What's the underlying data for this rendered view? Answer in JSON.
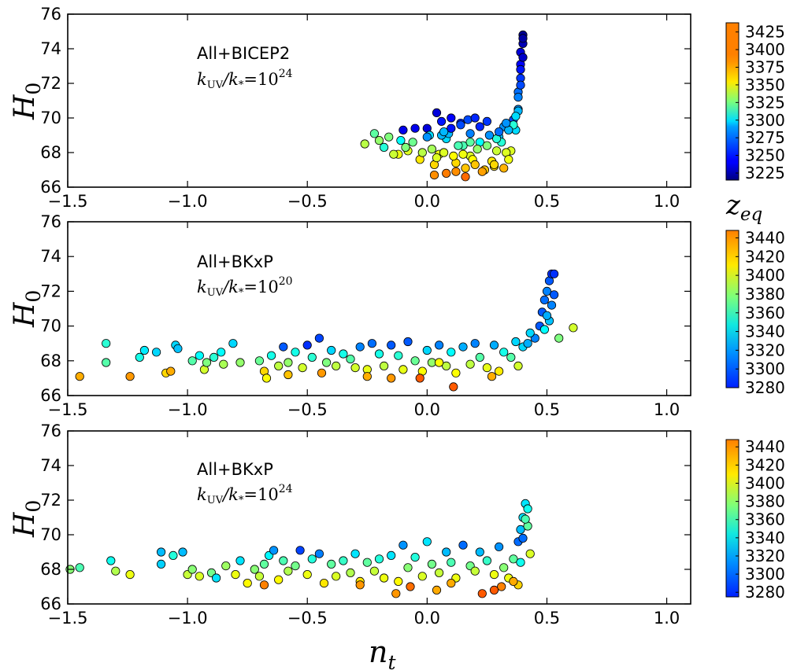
{
  "chart_data": [
    {
      "type": "scatter",
      "ylabel": "H_0",
      "ylabel_main": "H",
      "ylabel_sub": "0",
      "xlim": [
        -1.5,
        1.1
      ],
      "ylim": [
        66,
        76
      ],
      "xticks": [
        -1.5,
        -1.0,
        -0.5,
        0.0,
        0.5,
        1.0
      ],
      "xtick_labels": [
        "−1.5",
        "−1.0",
        "−0.5",
        "0.0",
        "0.5",
        "1.0"
      ],
      "yticks": [
        66,
        68,
        70,
        72,
        74,
        76
      ],
      "ytick_labels": [
        "66",
        "68",
        "70",
        "72",
        "74",
        "76"
      ],
      "annotation": {
        "dataset": "All+BICEP2",
        "ratio_prefix": "k",
        "ratio_sub1": "UV",
        "ratio_mid": "/k",
        "ratio_sub2": "*",
        "ratio_eq": "=10",
        "exponent": "24"
      },
      "colorbar": {
        "label": "z_eq",
        "label_main": "z",
        "label_sub": "eq",
        "range": [
          3215,
          3438
        ],
        "ticks": [
          3225,
          3250,
          3275,
          3300,
          3325,
          3350,
          3375,
          3400,
          3425
        ],
        "tick_labels": [
          "3225",
          "3250",
          "3275",
          "3300",
          "3325",
          "3350",
          "3375",
          "3400",
          "3425"
        ]
      },
      "series": [
        {
          "x": [
            -0.26,
            -0.22,
            -0.2,
            -0.18,
            -0.16,
            -0.12,
            -0.1,
            -0.08,
            -0.05,
            -0.03,
            0.0,
            0.02,
            0.04,
            0.05,
            0.06,
            0.08,
            0.1,
            0.12,
            0.14,
            0.15,
            0.17,
            0.18,
            0.2,
            0.22,
            0.25,
            0.28,
            0.3,
            0.32,
            0.35,
            0.37,
            -0.14,
            -0.06,
            0.03,
            0.09,
            0.16,
            0.21,
            0.27,
            0.33,
            -0.09,
            0.01,
            0.13,
            0.24,
            0.31,
            0.36,
            -0.11,
            0.07,
            0.19,
            0.29,
            0.34,
            0.38,
            0.38,
            0.39,
            0.39,
            0.39,
            0.4,
            0.4,
            0.4,
            0.39,
            0.38,
            0.38,
            0.4,
            0.39,
            0.37,
            0.36,
            0.34,
            0.3,
            0.26,
            0.22,
            0.18,
            0.14,
            0.1,
            0.06,
            0.04,
            0.0,
            -0.02,
            0.08,
            0.12,
            0.16,
            0.23,
            0.28,
            0.32,
            0.11,
            0.2,
            0.25,
            0.03,
            0.15,
            0.33,
            0.29,
            0.07,
            0.18
          ],
          "y": [
            68.5,
            69.1,
            68.7,
            68.3,
            68.9,
            67.9,
            69.3,
            68.1,
            69.4,
            67.6,
            69.4,
            68.2,
            70.3,
            67.9,
            69.8,
            68.8,
            70.0,
            67.4,
            69.7,
            68.4,
            69.9,
            67.8,
            70.0,
            68.6,
            69.8,
            67.2,
            68.9,
            69.5,
            68.1,
            69.3,
            67.9,
            68.6,
            67.3,
            69.1,
            67.1,
            68.2,
            67.5,
            68.0,
            68.3,
            69.0,
            68.4,
            67.0,
            68.6,
            69.9,
            68.7,
            68.0,
            67.6,
            68.8,
            67.6,
            70.5,
            71.5,
            72.3,
            73.1,
            73.8,
            74.3,
            74.8,
            74.6,
            72.8,
            71.2,
            70.4,
            73.5,
            71.9,
            70.1,
            69.6,
            69.3,
            69.2,
            69.0,
            69.5,
            69.1,
            69.6,
            69.4,
            69.0,
            67.7,
            68.9,
            68.0,
            66.8,
            66.9,
            66.6,
            66.9,
            67.3,
            67.1,
            67.8,
            67.3,
            68.4,
            66.7,
            67.9,
            69.7,
            68.1,
            69.2,
            68.6
          ],
          "z": [
            3370,
            3345,
            3360,
            3330,
            3355,
            3385,
            3245,
            3380,
            3245,
            3395,
            3240,
            3365,
            3240,
            3385,
            3255,
            3310,
            3250,
            3400,
            3260,
            3340,
            3270,
            3380,
            3260,
            3320,
            3265,
            3400,
            3300,
            3290,
            3380,
            3310,
            3375,
            3350,
            3400,
            3300,
            3405,
            3360,
            3395,
            3380,
            3355,
            3310,
            3340,
            3405,
            3330,
            3270,
            3320,
            3380,
            3390,
            3330,
            3385,
            3290,
            3280,
            3265,
            3250,
            3240,
            3230,
            3220,
            3225,
            3255,
            3285,
            3300,
            3235,
            3270,
            3310,
            3330,
            3300,
            3280,
            3290,
            3260,
            3285,
            3270,
            3255,
            3300,
            3380,
            3290,
            3370,
            3425,
            3420,
            3430,
            3415,
            3400,
            3410,
            3390,
            3405,
            3355,
            3420,
            3385,
            3290,
            3375,
            3300,
            3345
          ]
        }
      ]
    },
    {
      "type": "scatter",
      "ylabel": "H_0",
      "ylabel_main": "H",
      "ylabel_sub": "0",
      "xlim": [
        -1.5,
        1.1
      ],
      "ylim": [
        66,
        76
      ],
      "xticks": [
        -1.5,
        -1.0,
        -0.5,
        0.0,
        0.5,
        1.0
      ],
      "xtick_labels": [
        "−1.5",
        "−1.0",
        "−0.5",
        "0.0",
        "0.5",
        "1.0"
      ],
      "yticks": [
        66,
        68,
        70,
        72,
        74,
        76
      ],
      "ytick_labels": [
        "66",
        "68",
        "70",
        "72",
        "74",
        "76"
      ],
      "annotation": {
        "dataset": "All+BKxP",
        "ratio_prefix": "k",
        "ratio_sub1": "UV",
        "ratio_mid": "/k",
        "ratio_sub2": "*",
        "ratio_eq": "=10",
        "exponent": "20"
      },
      "colorbar": {
        "label": "",
        "range": [
          3280,
          3448
        ],
        "ticks": [
          3280,
          3300,
          3320,
          3340,
          3360,
          3380,
          3400,
          3420,
          3440
        ],
        "tick_labels": [
          "3280",
          "3300",
          "3320",
          "3340",
          "3360",
          "3380",
          "3400",
          "3420",
          "3440"
        ]
      },
      "series": [
        {
          "x": [
            -1.45,
            -1.34,
            -1.34,
            -1.24,
            -1.2,
            -1.18,
            -1.13,
            -1.09,
            -1.07,
            -1.05,
            -1.04,
            -0.98,
            -0.95,
            -0.93,
            -0.92,
            -0.89,
            -0.86,
            -0.85,
            -0.81,
            -0.78,
            -0.7,
            -0.68,
            -0.67,
            -0.65,
            -0.62,
            -0.6,
            -0.58,
            -0.55,
            -0.52,
            -0.5,
            -0.48,
            -0.45,
            -0.42,
            -0.4,
            -0.38,
            -0.35,
            -0.32,
            -0.3,
            -0.28,
            -0.25,
            -0.23,
            -0.2,
            -0.18,
            -0.15,
            -0.12,
            -0.1,
            -0.08,
            -0.05,
            -0.02,
            0.0,
            0.02,
            0.05,
            0.08,
            0.1,
            0.12,
            0.15,
            0.18,
            0.2,
            0.22,
            0.25,
            0.28,
            0.3,
            0.32,
            0.35,
            0.38,
            0.4,
            0.42,
            0.45,
            0.47,
            0.48,
            0.49,
            0.5,
            0.51,
            0.52,
            0.53,
            0.53,
            0.52,
            0.51,
            0.5,
            0.49,
            0.55,
            0.61,
            0.37,
            0.11,
            -0.03,
            -0.44,
            -0.58,
            -0.25,
            -0.15,
            0.05,
            0.27,
            0.43
          ],
          "y": [
            67.1,
            69.0,
            67.9,
            67.1,
            68.2,
            68.6,
            68.5,
            67.3,
            67.4,
            68.9,
            68.7,
            68.0,
            68.3,
            67.5,
            67.9,
            68.2,
            68.5,
            67.8,
            69.0,
            67.9,
            68.0,
            67.4,
            67.0,
            68.3,
            67.7,
            68.8,
            67.9,
            68.5,
            67.6,
            68.9,
            68.2,
            69.3,
            67.9,
            68.6,
            67.7,
            68.4,
            68.1,
            67.6,
            68.8,
            67.5,
            69.0,
            68.4,
            67.7,
            68.9,
            68.3,
            67.5,
            69.1,
            68.0,
            67.4,
            68.6,
            67.9,
            68.9,
            67.7,
            68.5,
            67.3,
            68.8,
            67.8,
            69.0,
            68.2,
            67.6,
            68.9,
            67.4,
            68.5,
            68.2,
            67.7,
            68.8,
            69.0,
            69.3,
            70.0,
            70.8,
            71.5,
            72.0,
            72.6,
            73.0,
            73.0,
            71.8,
            71.2,
            70.3,
            70.6,
            69.8,
            69.3,
            69.9,
            69.1,
            66.5,
            67.0,
            67.3,
            67.2,
            67.1,
            67.0,
            67.9,
            67.1,
            69.6
          ],
          "z": [
            3420,
            3350,
            3360,
            3425,
            3345,
            3335,
            3330,
            3410,
            3420,
            3330,
            3325,
            3360,
            3340,
            3390,
            3370,
            3350,
            3340,
            3380,
            3330,
            3375,
            3365,
            3410,
            3400,
            3345,
            3385,
            3300,
            3375,
            3345,
            3390,
            3290,
            3350,
            3295,
            3370,
            3330,
            3385,
            3345,
            3360,
            3390,
            3310,
            3395,
            3305,
            3345,
            3385,
            3300,
            3350,
            3395,
            3300,
            3365,
            3400,
            3330,
            3375,
            3310,
            3385,
            3340,
            3400,
            3320,
            3385,
            3310,
            3360,
            3395,
            3320,
            3405,
            3345,
            3360,
            3390,
            3330,
            3320,
            3310,
            3300,
            3300,
            3305,
            3310,
            3300,
            3290,
            3290,
            3300,
            3310,
            3325,
            3320,
            3340,
            3370,
            3390,
            3330,
            3440,
            3440,
            3425,
            3415,
            3420,
            3425,
            3400,
            3420,
            3330
          ]
        }
      ]
    },
    {
      "type": "scatter",
      "ylabel": "H_0",
      "ylabel_main": "H",
      "ylabel_sub": "0",
      "xlabel": "n_t",
      "xlabel_main": "n",
      "xlabel_sub": "t",
      "xlim": [
        -1.5,
        1.1
      ],
      "ylim": [
        66,
        76
      ],
      "xticks": [
        -1.5,
        -1.0,
        -0.5,
        0.0,
        0.5,
        1.0
      ],
      "xtick_labels": [
        "−1.5",
        "−1.0",
        "−0.5",
        "0.0",
        "0.5",
        "1.0"
      ],
      "yticks": [
        66,
        68,
        70,
        72,
        74,
        76
      ],
      "ytick_labels": [
        "66",
        "68",
        "70",
        "72",
        "74",
        "76"
      ],
      "annotation": {
        "dataset": "All+BKxP",
        "ratio_prefix": "k",
        "ratio_sub1": "UV",
        "ratio_mid": "/k",
        "ratio_sub2": "*",
        "ratio_eq": "=10",
        "exponent": "24"
      },
      "colorbar": {
        "label": "",
        "range": [
          3275,
          3448
        ],
        "ticks": [
          3280,
          3300,
          3320,
          3340,
          3360,
          3380,
          3400,
          3420,
          3440
        ],
        "tick_labels": [
          "3280",
          "3300",
          "3320",
          "3340",
          "3360",
          "3380",
          "3400",
          "3420",
          "3440"
        ]
      },
      "series": [
        {
          "x": [
            -1.49,
            -1.45,
            -1.32,
            -1.3,
            -1.24,
            -1.11,
            -1.11,
            -1.06,
            -1.02,
            -1.0,
            -0.98,
            -0.95,
            -0.9,
            -0.88,
            -0.84,
            -0.8,
            -0.78,
            -0.75,
            -0.72,
            -0.7,
            -0.68,
            -0.66,
            -0.64,
            -0.62,
            -0.6,
            -0.58,
            -0.55,
            -0.53,
            -0.5,
            -0.48,
            -0.45,
            -0.43,
            -0.4,
            -0.38,
            -0.35,
            -0.32,
            -0.3,
            -0.28,
            -0.25,
            -0.22,
            -0.2,
            -0.18,
            -0.15,
            -0.12,
            -0.1,
            -0.08,
            -0.05,
            -0.02,
            0.0,
            0.02,
            0.05,
            0.08,
            0.1,
            0.12,
            0.15,
            0.18,
            0.2,
            0.22,
            0.25,
            0.28,
            0.3,
            0.32,
            0.34,
            0.36,
            0.38,
            0.39,
            0.4,
            0.41,
            0.42,
            0.42,
            0.41,
            0.4,
            0.39,
            0.43,
            0.38,
            0.36,
            -0.13,
            -0.07,
            0.04,
            0.23,
            0.31,
            -0.28,
            0.1,
            0.28,
            -0.68
          ],
          "y": [
            68.0,
            68.1,
            68.5,
            67.9,
            67.7,
            69.0,
            68.3,
            68.8,
            69.0,
            67.7,
            68.0,
            67.6,
            67.8,
            67.5,
            68.2,
            67.7,
            68.5,
            67.2,
            68.0,
            67.6,
            68.3,
            68.8,
            69.1,
            67.4,
            68.5,
            67.9,
            68.2,
            69.1,
            67.7,
            68.6,
            68.9,
            67.2,
            68.3,
            67.6,
            68.5,
            67.8,
            68.9,
            67.3,
            68.4,
            67.9,
            68.6,
            67.5,
            68.8,
            67.3,
            69.4,
            68.1,
            68.7,
            67.6,
            69.6,
            68.3,
            67.8,
            69.0,
            68.4,
            67.5,
            69.4,
            68.2,
            67.9,
            69.0,
            68.5,
            67.7,
            69.3,
            68.1,
            67.5,
            68.6,
            69.6,
            70.3,
            71.0,
            71.8,
            71.5,
            70.5,
            70.9,
            69.8,
            68.4,
            68.9,
            67.1,
            67.3,
            66.6,
            67.0,
            66.8,
            66.6,
            67.0,
            67.1,
            67.2,
            66.8,
            67.1
          ],
          "z": [
            3370,
            3355,
            3340,
            3380,
            3395,
            3320,
            3325,
            3345,
            3320,
            3385,
            3370,
            3390,
            3365,
            3330,
            3375,
            3395,
            3330,
            3400,
            3370,
            3385,
            3360,
            3335,
            3310,
            3400,
            3355,
            3380,
            3365,
            3290,
            3395,
            3345,
            3305,
            3405,
            3360,
            3390,
            3350,
            3380,
            3330,
            3405,
            3360,
            3385,
            3345,
            3395,
            3330,
            3400,
            3310,
            3370,
            3345,
            3390,
            3330,
            3365,
            3385,
            3320,
            3355,
            3395,
            3300,
            3365,
            3385,
            3320,
            3350,
            3395,
            3310,
            3370,
            3395,
            3360,
            3300,
            3320,
            3330,
            3330,
            3340,
            3360,
            3355,
            3300,
            3340,
            3390,
            3410,
            3420,
            3425,
            3435,
            3420,
            3440,
            3430,
            3425,
            3420,
            3440,
            3430
          ]
        }
      ]
    }
  ]
}
